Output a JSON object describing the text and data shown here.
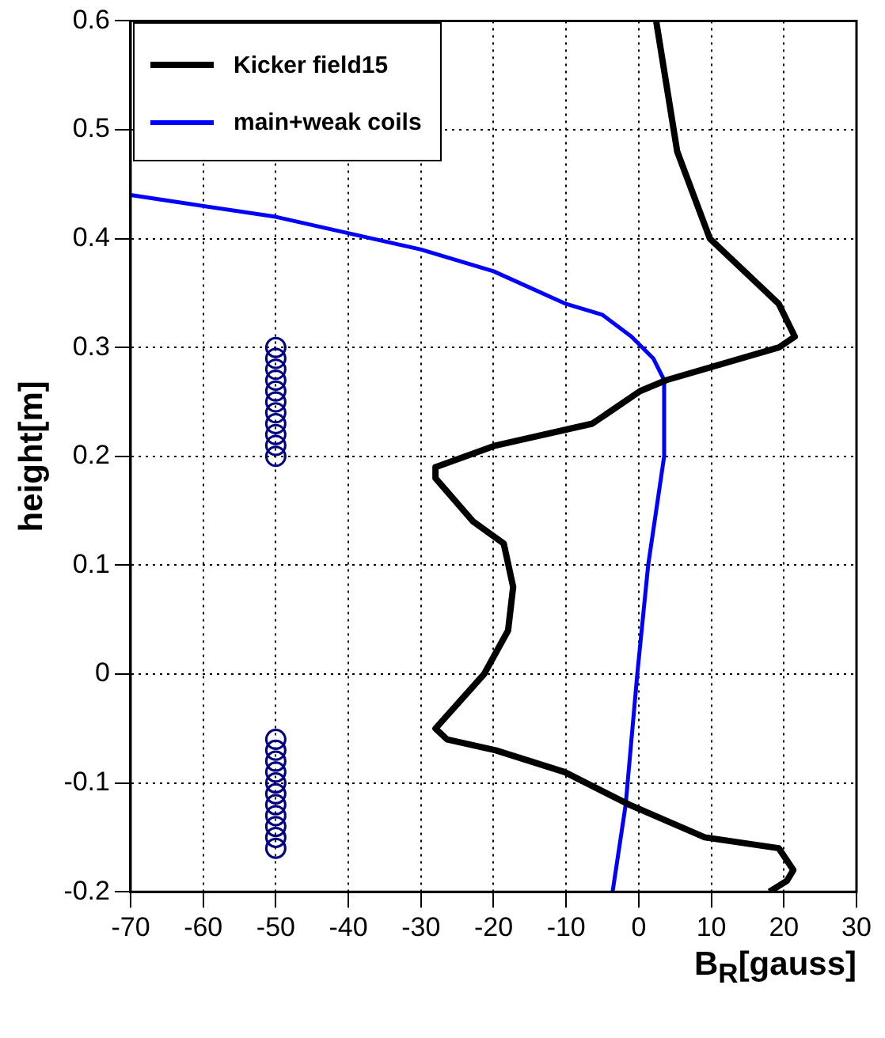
{
  "chart_data": {
    "type": "line",
    "xlabel": "B$_{R}$[gauss]",
    "ylabel": "height[m]",
    "xlim": [
      -70,
      30
    ],
    "xticks": [
      -70,
      -60,
      -50,
      -40,
      -30,
      -20,
      -10,
      0,
      10,
      20,
      30
    ],
    "ylim": [
      -0.2,
      0.6
    ],
    "yticks": [
      -0.2,
      -0.1,
      0,
      0.1,
      0.2,
      0.3,
      0.4,
      0.5,
      0.6
    ],
    "grid": true,
    "legend": "top left",
    "line_style": "solid",
    "marker": "none",
    "series": [
      {
        "name": "Kicker field15",
        "color": "#000000",
        "x": [
          2.4,
          5.3,
          9.8,
          19.3,
          21.5,
          19.3,
          3.8,
          0.2,
          -6.4,
          -19.7,
          -28,
          -28,
          -22.8,
          -18.6,
          -17.3,
          -18,
          -21.3,
          -28,
          -26.4,
          -19.7,
          -10.2,
          -1.3,
          9.1,
          19.3,
          21.3,
          20.4,
          18
        ],
        "values": [
          0.6,
          0.48,
          0.4,
          0.34,
          0.31,
          0.3,
          0.27,
          0.26,
          0.23,
          0.21,
          0.19,
          0.18,
          0.14,
          0.12,
          0.08,
          0.04,
          0,
          -0.05,
          -0.06,
          -0.07,
          -0.09,
          -0.12,
          -0.15,
          -0.16,
          -0.18,
          -0.19,
          -0.2
        ]
      },
      {
        "name": "main+weak coils",
        "color": "#0000ff",
        "x": [
          -70,
          -50,
          -30,
          -20,
          -10,
          -5,
          -1,
          2,
          3.5,
          3.5,
          1.3,
          -0.2,
          -1.8,
          -3.6
        ],
        "values": [
          0.44,
          0.42,
          0.39,
          0.37,
          0.34,
          0.33,
          0.31,
          0.29,
          0.27,
          0.2,
          0.1,
          0,
          -0.12,
          -0.2
        ]
      },
      {
        "color": "#000080",
        "type": "scatter",
        "marker": "circle",
        "x": [
          -50,
          -50,
          -50,
          -50,
          -50,
          -50,
          -50,
          -50,
          -50,
          -50,
          -50,
          -50,
          -50,
          -50,
          -50,
          -50,
          -50,
          -50,
          -50,
          -50,
          -50,
          -50
        ],
        "values": [
          0.2,
          0.21,
          0.22,
          0.23,
          0.24,
          0.25,
          0.26,
          0.27,
          0.28,
          0.29,
          0.3,
          -0.16,
          -0.15,
          -0.14,
          -0.13,
          -0.12,
          -0.11,
          -0.1,
          -0.09,
          -0.08,
          -0.07,
          -0.06
        ]
      }
    ]
  }
}
